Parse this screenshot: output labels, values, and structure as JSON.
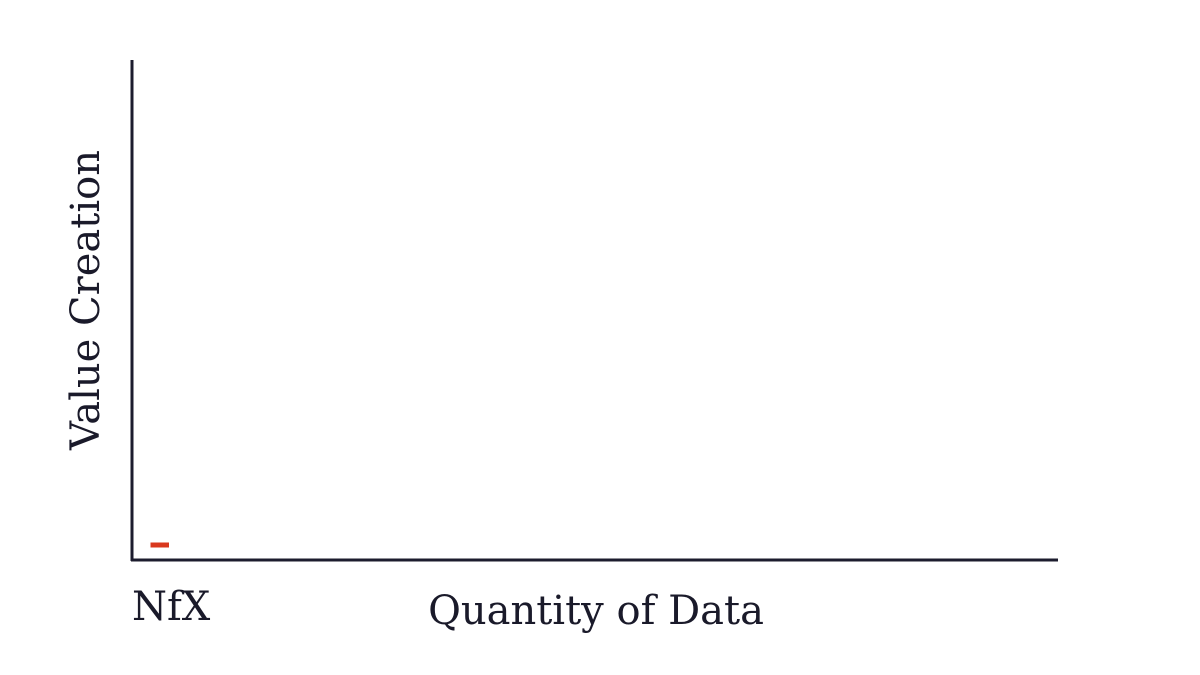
{
  "chart_data": {
    "type": "line",
    "title": "",
    "xlabel": "Quantity of Data",
    "ylabel": "Value Creation",
    "xlim": [
      0,
      100
    ],
    "ylim": [
      0,
      100
    ],
    "grid": false,
    "series": [
      {
        "color": "#d9381e",
        "x": [
          2,
          4
        ],
        "y": [
          3,
          3
        ]
      }
    ]
  },
  "brand": {
    "logo_text": "NfX"
  },
  "colors": {
    "axis": "#1c1c2e",
    "text": "#1a1a2a",
    "series": "#d9381e"
  }
}
